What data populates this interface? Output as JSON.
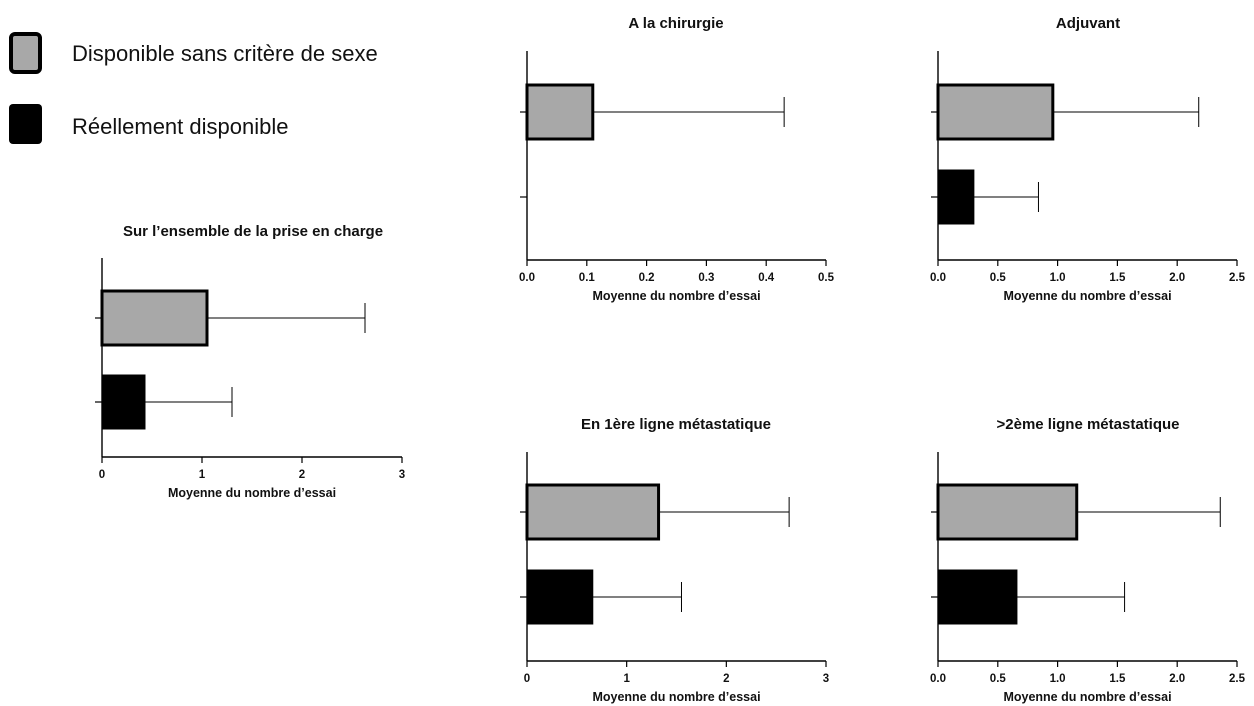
{
  "legend": {
    "items": [
      {
        "label": "Disponible sans critère de sexe",
        "color": "#a8a8a8"
      },
      {
        "label": "Réellement disponible",
        "color": "#000000"
      }
    ]
  },
  "chart_data": [
    {
      "type": "bar",
      "orientation": "horizontal",
      "title": "Sur l’ensemble de la prise en charge",
      "xlabel": "Moyenne du nombre d’essai",
      "xlim": [
        0,
        3
      ],
      "xticks": [
        "0",
        "1",
        "2",
        "3"
      ],
      "series": [
        {
          "name": "Disponible sans critère de sexe",
          "value": 1.05,
          "error_upper": 2.63
        },
        {
          "name": "Réellement disponible",
          "value": 0.43,
          "error_upper": 1.3
        }
      ]
    },
    {
      "type": "bar",
      "orientation": "horizontal",
      "title": "A la chirurgie",
      "xlabel": "Moyenne du nombre d’essai",
      "xlim": [
        0,
        0.5
      ],
      "xticks": [
        "0.0",
        "0.1",
        "0.2",
        "0.3",
        "0.4",
        "0.5"
      ],
      "series": [
        {
          "name": "Disponible sans critère de sexe",
          "value": 0.11,
          "error_upper": 0.43
        },
        {
          "name": "Réellement disponible",
          "value": 0,
          "error_upper": 0
        }
      ]
    },
    {
      "type": "bar",
      "orientation": "horizontal",
      "title": "Adjuvant",
      "xlabel": "Moyenne du nombre d’essai",
      "xlim": [
        0,
        2.5
      ],
      "xticks": [
        "0.0",
        "0.5",
        "1.0",
        "1.5",
        "2.0",
        "2.5"
      ],
      "series": [
        {
          "name": "Disponible sans critère de sexe",
          "value": 0.96,
          "error_upper": 2.18
        },
        {
          "name": "Réellement disponible",
          "value": 0.3,
          "error_upper": 0.84
        }
      ]
    },
    {
      "type": "bar",
      "orientation": "horizontal",
      "title": "En 1ère ligne métastatique",
      "xlabel": "Moyenne du nombre d’essai",
      "xlim": [
        0,
        3
      ],
      "xticks": [
        "0",
        "1",
        "2",
        "3"
      ],
      "series": [
        {
          "name": "Disponible sans critère de sexe",
          "value": 1.32,
          "error_upper": 2.63
        },
        {
          "name": "Réellement disponible",
          "value": 0.66,
          "error_upper": 1.55
        }
      ]
    },
    {
      "type": "bar",
      "orientation": "horizontal",
      "title": ">2ème ligne métastatique",
      "xlabel": "Moyenne du nombre d’essai",
      "xlim": [
        0,
        2.5
      ],
      "xticks": [
        "0.0",
        "0.5",
        "1.0",
        "1.5",
        "2.0",
        "2.5"
      ],
      "series": [
        {
          "name": "Disponible sans critère de sexe",
          "value": 1.16,
          "error_upper": 2.36
        },
        {
          "name": "Réellement disponible",
          "value": 0.66,
          "error_upper": 1.56
        }
      ]
    }
  ]
}
